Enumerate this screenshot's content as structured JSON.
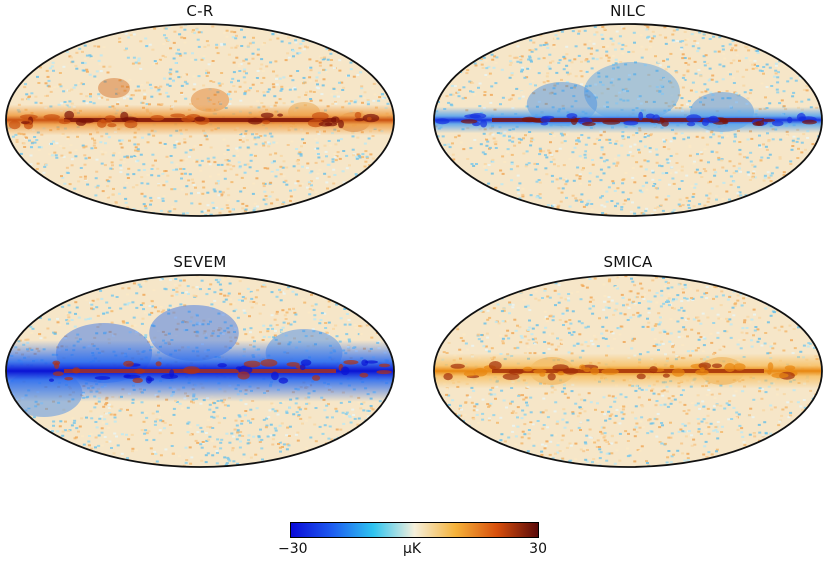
{
  "figure": {
    "panels": [
      {
        "title": "C-R",
        "pattern": "warm-plane"
      },
      {
        "title": "NILC",
        "pattern": "cold-plane"
      },
      {
        "title": "SEVEM",
        "pattern": "strong-cold"
      },
      {
        "title": "SMICA",
        "pattern": "orange-plane"
      }
    ],
    "colorbar": {
      "min_label": "−30",
      "unit_label": "μK",
      "max_label": "30",
      "colors": [
        "#0a0ad8",
        "#1d5cf0",
        "#2ec4f0",
        "#f5f0dc",
        "#f5b23a",
        "#d84f0c",
        "#5a0a0a"
      ]
    }
  }
}
